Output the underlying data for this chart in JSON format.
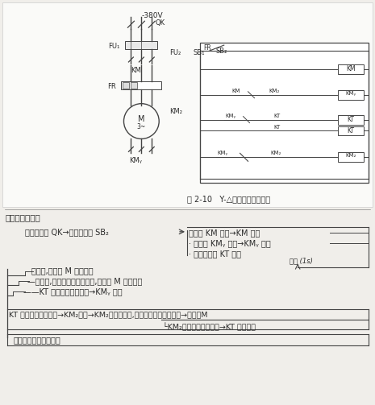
{
  "bg_color": "#f0eeea",
  "page_color": "#f8f7f4",
  "line_color": "#444444",
  "text_color": "#2a2a2a",
  "title": "图 2-10   Y-△减压启动控制线路",
  "intro": "启动过程如下：",
  "flow1": "合上刀开关 QK→按启动按鈕 SB₂",
  "flow_r1": "接触器 KM 通电→KM 主触",
  "flow_r2": "· 接触器 KMᵧ 通电→KMᵧ 主触",
  "flow_r3": "· 时间继电器 KT 通电",
  "delay": "延时 (1s)",
  "b1": "头闭合,电动机 M 接通电源",
  "b2": "—头闭合,定子绕组连接成星形,电动机 M 减压启动",
  "b3": "——KT 延时打开常闭触头→KMᵧ 断电",
  "b4": "KT 延时闭合常开触头→KM₂通电→KM₂主触头闭合,定子绕组连接成三角形→电动机M",
  "b5": "└KM₂常闭辅助触头断开→KT 线圈断电",
  "b6": "加以额定电压正常运行"
}
